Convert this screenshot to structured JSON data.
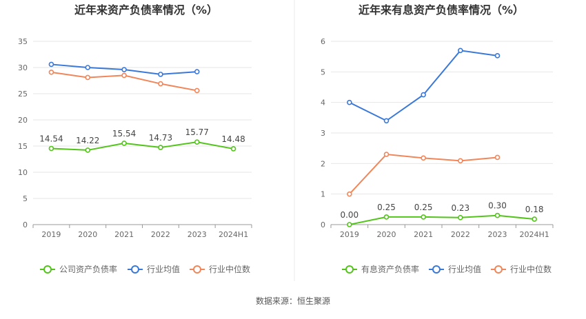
{
  "source_label": "数据来源：恒生聚源",
  "colors": {
    "company": "#52c41a",
    "industry_avg": "#3a78d8",
    "industry_median": "#f0865a",
    "grid": "#e6e6e6",
    "axis": "#999999",
    "text": "#666666",
    "title": "#333333",
    "divider": "#e8e8e8"
  },
  "chart_data": [
    {
      "type": "line",
      "title": "近年来资产负债率情况（%）",
      "categories": [
        "2019",
        "2020",
        "2021",
        "2022",
        "2023",
        "2024H1"
      ],
      "ylim": [
        0,
        35
      ],
      "yticks": [
        0,
        5,
        10,
        15,
        20,
        25,
        30,
        35
      ],
      "grid": true,
      "legend_position": "bottom",
      "series": [
        {
          "name": "公司资产负债率",
          "color_key": "company",
          "labeled": true,
          "values": [
            14.54,
            14.22,
            15.54,
            14.73,
            15.77,
            14.48
          ],
          "labels": [
            "14.54",
            "14.22",
            "15.54",
            "14.73",
            "15.77",
            "14.48"
          ]
        },
        {
          "name": "行业均值",
          "color_key": "industry_avg",
          "labeled": false,
          "values": [
            30.6,
            30.0,
            29.6,
            28.7,
            29.2,
            null
          ]
        },
        {
          "name": "行业中位数",
          "color_key": "industry_median",
          "labeled": false,
          "values": [
            29.1,
            28.1,
            28.5,
            26.9,
            25.6,
            null
          ]
        }
      ]
    },
    {
      "type": "line",
      "title": "近年来有息资产负债率情况（%）",
      "categories": [
        "2019",
        "2020",
        "2021",
        "2022",
        "2023",
        "2024H1"
      ],
      "ylim": [
        0,
        6
      ],
      "yticks": [
        0,
        1,
        2,
        3,
        4,
        5,
        6
      ],
      "grid": true,
      "legend_position": "bottom",
      "series": [
        {
          "name": "有息资产负债率",
          "color_key": "company",
          "labeled": true,
          "values": [
            0.0,
            0.25,
            0.25,
            0.23,
            0.3,
            0.18
          ],
          "labels": [
            "0.00",
            "0.25",
            "0.25",
            "0.23",
            "0.30",
            "0.18"
          ]
        },
        {
          "name": "行业均值",
          "color_key": "industry_avg",
          "labeled": false,
          "values": [
            4.0,
            3.4,
            4.25,
            5.7,
            5.53,
            null
          ]
        },
        {
          "name": "行业中位数",
          "color_key": "industry_median",
          "labeled": false,
          "values": [
            1.0,
            2.3,
            2.18,
            2.09,
            2.2,
            null
          ]
        }
      ]
    }
  ]
}
